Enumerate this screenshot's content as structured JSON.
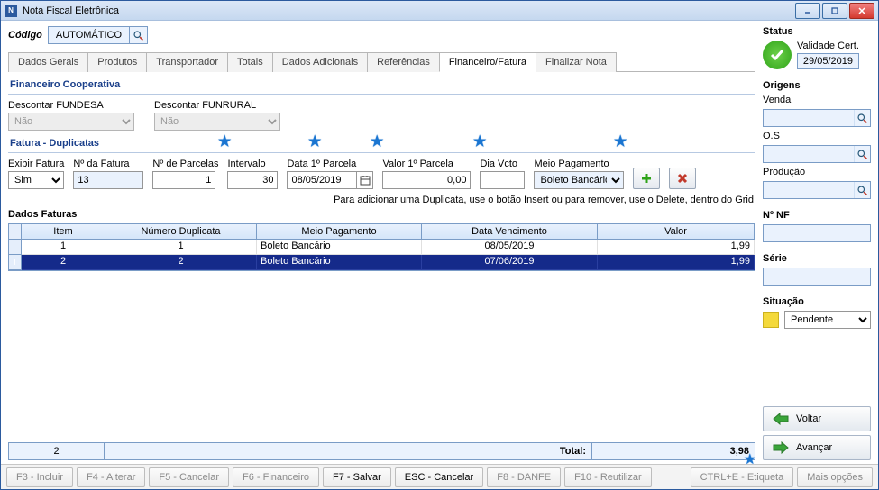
{
  "window": {
    "title": "Nota Fiscal Eletrônica"
  },
  "codigo": {
    "label": "Código",
    "value": "AUTOMÁTICO"
  },
  "tabs": [
    {
      "label": "Dados Gerais"
    },
    {
      "label": "Produtos"
    },
    {
      "label": "Transportador"
    },
    {
      "label": "Totais"
    },
    {
      "label": "Dados Adicionais"
    },
    {
      "label": "Referências"
    },
    {
      "label": "Financeiro/Fatura",
      "active": true
    },
    {
      "label": "Finalizar Nota"
    }
  ],
  "sections": {
    "coop_title": "Financeiro Cooperativa",
    "fatura_title": "Fatura - Duplicatas",
    "dados_faturas_title": "Dados Faturas",
    "hint": "Para adicionar uma Duplicata, use o botão Insert ou para remover, use o Delete, dentro do Grid"
  },
  "coop": {
    "fundesa_label": "Descontar FUNDESA",
    "fundesa_value": "Não",
    "funrural_label": "Descontar FUNRURAL",
    "funrural_value": "Não"
  },
  "fatura": {
    "exibir_label": "Exibir Fatura",
    "exibir_value": "Sim",
    "num_label": "Nº da Fatura",
    "num_value": "13",
    "parcelas_label": "Nº de Parcelas",
    "parcelas_value": "1",
    "intervalo_label": "Intervalo",
    "intervalo_value": "30",
    "data1_label": "Data 1º Parcela",
    "data1_value": "08/05/2019",
    "valor1_label": "Valor 1º Parcela",
    "valor1_value": "0,00",
    "dia_label": "Dia Vcto",
    "dia_value": "",
    "meio_label": "Meio Pagamento",
    "meio_value": "Boleto Bancário"
  },
  "grid": {
    "columns": [
      "Item",
      "Número Duplicata",
      "Meio Pagamento",
      "Data Vencimento",
      "Valor"
    ],
    "rows": [
      {
        "item": "1",
        "dup": "1",
        "meio": "Boleto Bancário",
        "data": "08/05/2019",
        "valor": "1,99",
        "selected": false
      },
      {
        "item": "2",
        "dup": "2",
        "meio": "Boleto Bancário",
        "data": "07/06/2019",
        "valor": "1,99",
        "selected": true
      }
    ]
  },
  "totals": {
    "count": "2",
    "label": "Total:",
    "value": "3,98"
  },
  "side": {
    "status_label": "Status",
    "validade_label": "Validade Cert.",
    "validade_value": "29/05/2019",
    "origens_label": "Origens",
    "venda_label": "Venda",
    "os_label": "O.S",
    "producao_label": "Produção",
    "nf_label": "Nº NF",
    "serie_label": "Série",
    "situacao_label": "Situação",
    "situacao_value": "Pendente",
    "voltar": "Voltar",
    "avancar": "Avançar"
  },
  "footer": {
    "f3": "F3 - Incluir",
    "f4": "F4 - Alterar",
    "f5": "F5 - Cancelar",
    "f6": "F6 - Financeiro",
    "f7": "F7 - Salvar",
    "esc": "ESC - Cancelar",
    "f8": "F8 - DANFE",
    "f10": "F10 - Reutilizar",
    "etiqueta": "CTRL+E - Etiqueta",
    "mais": "Mais opções"
  },
  "colors": {
    "accent": "#1a3f8a",
    "select_row": "#152a8a",
    "panel": "#eaf2fd"
  }
}
